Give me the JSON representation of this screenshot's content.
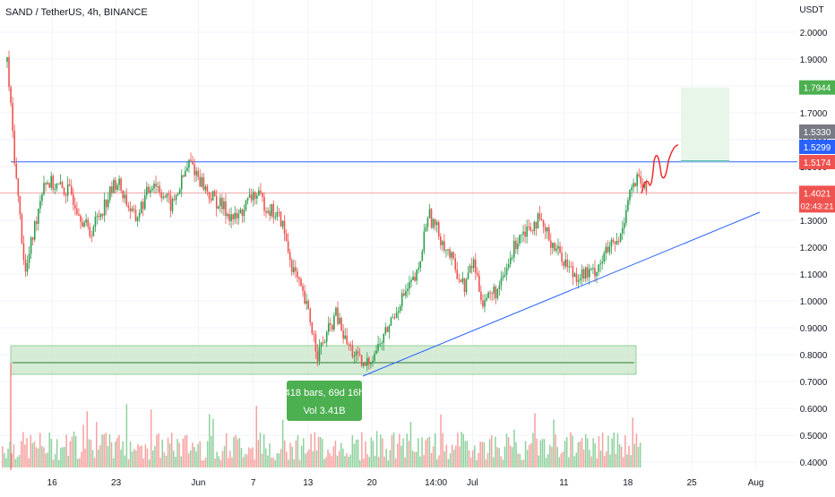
{
  "header": {
    "title": "SAND / TetherUS, 4h, BINANCE",
    "currency": "USDT"
  },
  "colors": {
    "up": "#26a69a",
    "up_candle": "#2e9e4f",
    "down": "#ef5350",
    "blue_line": "#2962ff",
    "zone_fill": "#c8e6c9",
    "target_fill": "#e8f5e9",
    "price_label": "#ef5350",
    "target_label": "#4caf50",
    "gray_label": "#787b86",
    "blue_label": "#2962ff"
  },
  "chart_data": {
    "type": "candlestick",
    "symbol": "SAND / TetherUS",
    "timeframe": "4h",
    "exchange": "BINANCE",
    "y_axis": {
      "unit": "USDT",
      "ticks": [
        "2.0000",
        "1.9000",
        "1.8000",
        "1.7000",
        "1.6000",
        "1.5000",
        "1.4000",
        "1.3000",
        "1.2000",
        "1.1000",
        "1.0000",
        "0.9000",
        "0.8000",
        "0.7000",
        "0.6000",
        "0.5000",
        "0.4000"
      ],
      "range": [
        0.38,
        2.05
      ]
    },
    "x_axis": {
      "ticks": [
        "16",
        "23",
        "Jun",
        "7",
        "13",
        "20",
        "14:00",
        "Jul",
        "11",
        "18",
        "25",
        "Aug"
      ]
    },
    "price_path": [
      {
        "date": "May 11",
        "close": 1.89
      },
      {
        "date": "May 12",
        "close": 1.45
      },
      {
        "date": "May 13",
        "close": 1.1
      },
      {
        "date": "May 15",
        "close": 1.45
      },
      {
        "date": "May 18",
        "close": 1.4
      },
      {
        "date": "May 20",
        "close": 1.25
      },
      {
        "date": "May 23",
        "close": 1.45
      },
      {
        "date": "May 25",
        "close": 1.3
      },
      {
        "date": "May 27",
        "close": 1.45
      },
      {
        "date": "May 29",
        "close": 1.35
      },
      {
        "date": "May 31",
        "close": 1.52
      },
      {
        "date": "Jun 2",
        "close": 1.4
      },
      {
        "date": "Jun 5",
        "close": 1.3
      },
      {
        "date": "Jun 7",
        "close": 1.4
      },
      {
        "date": "Jun 10",
        "close": 1.3
      },
      {
        "date": "Jun 11",
        "close": 1.15
      },
      {
        "date": "Jun 13",
        "close": 0.95
      },
      {
        "date": "Jun 14",
        "close": 0.8
      },
      {
        "date": "Jun 16",
        "close": 0.95
      },
      {
        "date": "Jun 17",
        "close": 0.85
      },
      {
        "date": "Jun 19",
        "close": 0.75
      },
      {
        "date": "Jun 21",
        "close": 0.85
      },
      {
        "date": "Jun 23",
        "close": 1.0
      },
      {
        "date": "Jun 25",
        "close": 1.1
      },
      {
        "date": "Jun 26",
        "close": 1.33
      },
      {
        "date": "Jun 28",
        "close": 1.2
      },
      {
        "date": "Jun 30",
        "close": 1.05
      },
      {
        "date": "Jul 1",
        "close": 1.15
      },
      {
        "date": "Jul 2",
        "close": 1.0
      },
      {
        "date": "Jul 4",
        "close": 1.05
      },
      {
        "date": "Jul 6",
        "close": 1.25
      },
      {
        "date": "Jul 8",
        "close": 1.3
      },
      {
        "date": "Jul 10",
        "close": 1.2
      },
      {
        "date": "Jul 12",
        "close": 1.1
      },
      {
        "date": "Jul 14",
        "close": 1.1
      },
      {
        "date": "Jul 16",
        "close": 1.2
      },
      {
        "date": "Jul 17",
        "close": 1.22
      },
      {
        "date": "Jul 18",
        "close": 1.4
      },
      {
        "date": "Jul 19",
        "close": 1.45
      },
      {
        "date": "Jul 20",
        "close": 1.4021
      }
    ],
    "current_price": {
      "value": "1.4021",
      "countdown": "02:43:21"
    },
    "price_labels": [
      {
        "value": "1.7944",
        "kind": "target"
      },
      {
        "value": "1.5330",
        "kind": "gray"
      },
      {
        "value": "1.5299",
        "kind": "blue"
      },
      {
        "value": "1.5174",
        "kind": "red"
      }
    ],
    "levels": {
      "resistance": 1.5174,
      "support_zone": [
        0.74,
        0.82
      ],
      "target": 1.7944
    },
    "trendline": [
      {
        "date": "Jun 19",
        "price": 0.72
      },
      {
        "date": "Jul 29",
        "price": 1.33
      }
    ],
    "projection": [
      1.4,
      1.44,
      1.52,
      1.47,
      1.52,
      1.58
    ],
    "measure": {
      "bars": "418 bars, 69d 16h",
      "volume": "Vol 3.41B"
    },
    "volume": {
      "shown": true
    }
  }
}
